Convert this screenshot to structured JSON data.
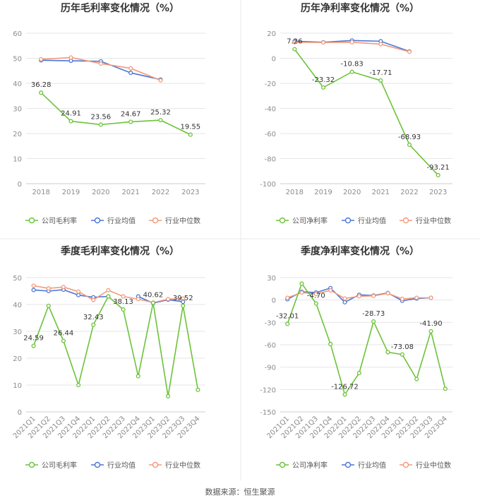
{
  "footer": "数据来源：恒生聚源",
  "colors": {
    "company": "#6cc33a",
    "industry_avg": "#4a77d6",
    "industry_median": "#f19a7c",
    "grid": "#e6e6e6",
    "axis_text": "#8c8c8c",
    "label_text": "#333333",
    "title_text": "#333333",
    "divider": "#dddddd"
  },
  "chart_data": [
    {
      "type": "line",
      "title": "历年毛利率变化情况（%）",
      "categories": [
        "2018",
        "2019",
        "2020",
        "2021",
        "2022",
        "2023"
      ],
      "ylim": [
        0,
        60
      ],
      "yticks": [
        0,
        10,
        20,
        30,
        40,
        50,
        60
      ],
      "grid": true,
      "legend": "bottom",
      "series": [
        {
          "name": "公司毛利率",
          "role": "company",
          "values": [
            36.28,
            24.91,
            23.56,
            24.67,
            25.32,
            19.55
          ],
          "labels": [
            "36.28",
            "24.91",
            "23.56",
            "24.67",
            "25.32",
            "19.55"
          ]
        },
        {
          "name": "行业均值",
          "role": "industry_avg",
          "values": [
            49.2,
            49.0,
            48.8,
            44.2,
            41.5,
            null
          ]
        },
        {
          "name": "行业中位数",
          "role": "industry_median",
          "values": [
            49.6,
            50.3,
            47.9,
            46.0,
            41.2,
            null
          ]
        }
      ]
    },
    {
      "type": "line",
      "title": "历年净利率变化情况（%）",
      "categories": [
        "2018",
        "2019",
        "2020",
        "2021",
        "2022",
        "2023"
      ],
      "ylim": [
        -100,
        20
      ],
      "yticks": [
        -100,
        -80,
        -60,
        -40,
        -20,
        0,
        20
      ],
      "grid": true,
      "legend": "bottom",
      "series": [
        {
          "name": "公司净利率",
          "role": "company",
          "values": [
            7.26,
            -23.32,
            -10.83,
            -17.71,
            -68.93,
            -93.21
          ],
          "labels": [
            "7.26",
            "-23.32",
            "-10.83",
            "-17.71",
            "-68.93",
            "-93.21"
          ]
        },
        {
          "name": "行业均值",
          "role": "industry_avg",
          "values": [
            13.6,
            12.8,
            14.2,
            13.6,
            5.5,
            null
          ]
        },
        {
          "name": "行业中位数",
          "role": "industry_median",
          "values": [
            12.8,
            12.6,
            12.8,
            11.3,
            5.2,
            null
          ]
        }
      ]
    },
    {
      "type": "line",
      "title": "季度毛利率变化情况（%）",
      "categories": [
        "2021Q1",
        "2021Q2",
        "2021Q3",
        "2021Q4",
        "2022Q1",
        "2022Q2",
        "2022Q3",
        "2022Q4",
        "2023Q1",
        "2023Q2",
        "2023Q3",
        "2023Q4"
      ],
      "ylim": [
        0,
        50
      ],
      "yticks": [
        0,
        10,
        20,
        30,
        40,
        50
      ],
      "grid": true,
      "legend": "bottom",
      "series": [
        {
          "name": "公司毛利率",
          "role": "company",
          "values": [
            24.59,
            39.5,
            26.44,
            10.0,
            32.43,
            43.0,
            38.13,
            13.3,
            40.62,
            5.8,
            39.52,
            8.2
          ],
          "labels": [
            "24.59",
            "",
            "26.44",
            "",
            "32.43",
            "",
            "38.13",
            "",
            "40.62",
            "",
            "39.52",
            ""
          ]
        },
        {
          "name": "行业均值",
          "role": "industry_avg",
          "values": [
            45.4,
            45.0,
            45.5,
            43.5,
            42.7,
            43.0,
            null,
            43.0,
            40.5,
            41.8,
            41.0,
            null
          ]
        },
        {
          "name": "行业中位数",
          "role": "industry_median",
          "values": [
            47.0,
            46.0,
            46.5,
            44.8,
            41.7,
            45.3,
            43.0,
            42.0,
            40.7,
            42.0,
            42.2,
            null
          ]
        }
      ]
    },
    {
      "type": "line",
      "title": "季度净利率变化情况（%）",
      "categories": [
        "2021Q1",
        "2021Q2",
        "2021Q3",
        "2021Q4",
        "2022Q1",
        "2022Q2",
        "2022Q3",
        "2022Q4",
        "2023Q1",
        "2023Q2",
        "2023Q3",
        "2023Q4"
      ],
      "ylim": [
        -150,
        30
      ],
      "yticks": [
        -150,
        -120,
        -90,
        -60,
        -30,
        0,
        30
      ],
      "grid": true,
      "legend": "bottom",
      "series": [
        {
          "name": "公司净利率",
          "role": "company",
          "values": [
            -32.01,
            22.0,
            -4.7,
            -59.0,
            -126.72,
            -98.0,
            -28.73,
            -70.0,
            -73.08,
            -106.0,
            -41.9,
            -119.0
          ],
          "labels": [
            "-32.01",
            "",
            "-4.70",
            "",
            "-126.72",
            "",
            "-28.73",
            "",
            "-73.08",
            "",
            "-41.90",
            ""
          ]
        },
        {
          "name": "行业均值",
          "role": "industry_avg",
          "values": [
            1.0,
            11.0,
            10.0,
            16.0,
            -3.0,
            7.0,
            6.0,
            9.5,
            -1.0,
            2.0,
            3.0,
            null
          ]
        },
        {
          "name": "行业中位数",
          "role": "industry_median",
          "values": [
            3.0,
            10.0,
            8.0,
            13.0,
            2.0,
            5.0,
            5.5,
            9.0,
            1.5,
            3.0,
            3.0,
            null
          ]
        }
      ]
    }
  ]
}
